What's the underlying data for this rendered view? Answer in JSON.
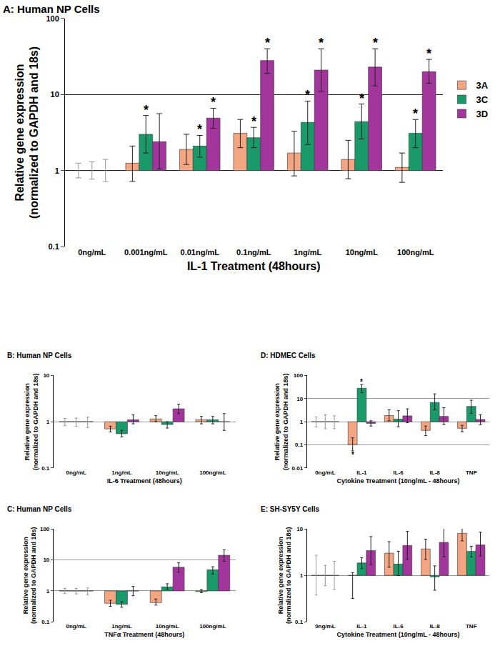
{
  "chart_data": [
    {
      "type": "bar",
      "title": "A: Human NP Cells",
      "x_label": "IL-1 Treatment (48hours)",
      "y_label": "Relative gene expression\n(normalized to GAPDH and 18s)",
      "categories": [
        "0ng/mL",
        "0.001ng/mL",
        "0.01ng/mL",
        "0.1ng/mL",
        "1ng/mL",
        "10ng/mL",
        "100ng/mL"
      ],
      "series": [
        {
          "name": "3A",
          "color": "#f4a582",
          "values": [
            1,
            1.25,
            1.9,
            3.1,
            1.7,
            1.4,
            1.1
          ],
          "errors_plus": [
            0.25,
            0.85,
            1.1,
            1.6,
            1.6,
            1.1,
            0.6
          ],
          "errors_minus": [
            0.2,
            0.53,
            0.7,
            1.1,
            0.85,
            0.62,
            0.4
          ]
        },
        {
          "name": "3C",
          "color": "#1a9a6a",
          "values": [
            1,
            3.0,
            2.1,
            2.7,
            4.3,
            4.4,
            3.1
          ],
          "errors_plus": [
            0.3,
            2.3,
            0.8,
            1.0,
            3.9,
            3.1,
            1.6
          ],
          "errors_minus": [
            0.23,
            1.3,
            0.6,
            0.7,
            2.1,
            1.8,
            1.1
          ]
        },
        {
          "name": "3D",
          "color": "#a3369c",
          "values": [
            1,
            2.4,
            4.9,
            28,
            21,
            23,
            20
          ],
          "errors_plus": [
            0.4,
            3.2,
            1.7,
            12,
            19,
            17,
            9
          ],
          "errors_minus": [
            0.28,
            1.35,
            1.3,
            9,
            10,
            10,
            6
          ]
        }
      ],
      "log": "y",
      "ylim": [
        0.1,
        100
      ],
      "yticks": [
        0.1,
        1,
        10,
        100
      ],
      "grid": true,
      "legend": "right",
      "annotations": [
        {
          "text": "*",
          "category": "0.001ng/mL",
          "series": "3C",
          "position": "above"
        },
        {
          "text": "*",
          "category": "0.01ng/mL",
          "series": "3C",
          "position": "above"
        },
        {
          "text": "*",
          "category": "0.1ng/mL",
          "series": "3C",
          "position": "above"
        },
        {
          "text": "*",
          "category": "1ng/mL",
          "series": "3C",
          "position": "above"
        },
        {
          "text": "*",
          "category": "10ng/mL",
          "series": "3C",
          "position": "above"
        },
        {
          "text": "*",
          "category": "100ng/mL",
          "series": "3C",
          "position": "above"
        },
        {
          "text": "*",
          "category": "0.01ng/mL",
          "series": "3D",
          "position": "above"
        },
        {
          "text": "*",
          "category": "0.1ng/mL",
          "series": "3D",
          "position": "above"
        },
        {
          "text": "*",
          "category": "1ng/mL",
          "series": "3D",
          "position": "above"
        },
        {
          "text": "*",
          "category": "10ng/mL",
          "series": "3D",
          "position": "above"
        },
        {
          "text": "*",
          "category": "100ng/mL",
          "series": "3D",
          "position": "above"
        }
      ]
    },
    {
      "type": "bar",
      "title": "B: Human NP Cells",
      "x_label": "IL-6 Treatment (48hours)",
      "y_label": "Relative gene expression\n(normalized to GAPDH and 18s)",
      "categories": [
        "0ng/mL",
        "1ng/mL",
        "10ng/mL",
        "100ng/mL"
      ],
      "series": [
        {
          "name": "3A",
          "color": "#f4a582",
          "values": [
            1,
            0.7,
            1.15,
            1.1
          ],
          "errors_plus": [
            0.18,
            0.1,
            0.2,
            0.2
          ],
          "errors_minus": [
            0.18,
            0.1,
            0.15,
            0.2
          ]
        },
        {
          "name": "3C",
          "color": "#1a9a6a",
          "values": [
            1,
            0.55,
            0.87,
            1.1
          ],
          "errors_plus": [
            0.2,
            0.1,
            0.13,
            0.2
          ],
          "errors_minus": [
            0.2,
            0.08,
            0.14,
            0.2
          ]
        },
        {
          "name": "3D",
          "color": "#a3369c",
          "values": [
            1,
            1.1,
            1.9,
            1.0
          ],
          "errors_plus": [
            0.25,
            0.3,
            0.5,
            0.5
          ],
          "errors_minus": [
            0.25,
            0.2,
            0.4,
            0.35
          ]
        }
      ],
      "log": "y",
      "ylim": [
        0.1,
        10
      ],
      "yticks": [
        0.1,
        1,
        10
      ],
      "grid": true
    },
    {
      "type": "bar",
      "title": "C: Human NP Cells",
      "x_label": "TNFα Treatment (48hours)",
      "y_label": "Relative gene expression\n(normalized to GAPDH and 18s)",
      "categories": [
        "0ng/mL",
        "1ng/mL",
        "10ng/mL",
        "100ng/mL"
      ],
      "series": [
        {
          "name": "3A",
          "color": "#f4a582",
          "values": [
            1,
            0.4,
            0.42,
            0.95
          ],
          "errors_plus": [
            0.2,
            0.1,
            0.13,
            0.15
          ],
          "errors_minus": [
            0.18,
            0.08,
            0.07,
            0.07
          ]
        },
        {
          "name": "3C",
          "color": "#1a9a6a",
          "values": [
            1,
            0.37,
            1.35,
            4.8
          ],
          "errors_plus": [
            0.2,
            0.08,
            0.35,
            1.2
          ],
          "errors_minus": [
            0.2,
            0.07,
            0.2,
            1.3
          ]
        },
        {
          "name": "3D",
          "color": "#a3369c",
          "values": [
            1,
            1.0,
            5.8,
            14
          ],
          "errors_plus": [
            0.25,
            0.4,
            2.2,
            7
          ],
          "errors_minus": [
            0.25,
            0.3,
            1.8,
            5
          ]
        }
      ],
      "log": "y",
      "ylim": [
        0.1,
        100
      ],
      "yticks": [
        0.1,
        1,
        10,
        100
      ],
      "grid": true
    },
    {
      "type": "bar",
      "title": "D: HDMEC Cells",
      "x_label": "Cytokine Treatment (10ng/mL - 48hours)",
      "y_label": "Relative gene expression\n(normalized to GAPDH and 18s)",
      "categories": [
        "0ng/mL",
        "IL-1",
        "IL-6",
        "IL-8",
        "TNF"
      ],
      "series": [
        {
          "name": "3A",
          "color": "#f4a582",
          "values": [
            1,
            0.1,
            1.85,
            0.42,
            0.52
          ],
          "errors_plus": [
            0.6,
            0.1,
            1.45,
            0.23,
            0.18
          ],
          "errors_minus": [
            0.4,
            0.045,
            0.75,
            0.17,
            0.15
          ]
        },
        {
          "name": "3C",
          "color": "#1a9a6a",
          "values": [
            1,
            28,
            1.3,
            6.8,
            4.6
          ],
          "errors_plus": [
            1.0,
            12,
            1.7,
            9.2,
            3.9
          ],
          "errors_minus": [
            0.5,
            10,
            0.7,
            3.5,
            2.3
          ]
        },
        {
          "name": "3D",
          "color": "#a3369c",
          "values": [
            1,
            0.85,
            1.8,
            1.7,
            1.25
          ],
          "errors_plus": [
            0.8,
            0.25,
            1.8,
            2.3,
            0.75
          ],
          "errors_minus": [
            0.5,
            0.2,
            0.9,
            0.95,
            0.5
          ]
        }
      ],
      "log": "y",
      "ylim": [
        0.01,
        100
      ],
      "yticks": [
        0.01,
        0.1,
        1,
        10,
        100
      ],
      "grid": true,
      "annotations": [
        {
          "text": "*",
          "category": "IL-1",
          "series": "3A",
          "position": "below"
        },
        {
          "text": "*",
          "category": "IL-1",
          "series": "3C",
          "position": "above"
        }
      ]
    },
    {
      "type": "bar",
      "title": "E: SH-SY5Y Cells",
      "x_label": "Cytokine Treatment (10ng/mL - 48hours)",
      "y_label": "Relative gene expression\n(normalized to GAPDH and 18s)",
      "categories": [
        "0ng/mL",
        "IL-1",
        "IL-6",
        "IL-8",
        "TNF"
      ],
      "series": [
        {
          "name": "3A",
          "color": "#f4a582",
          "values": [
            1,
            1.0,
            3.0,
            3.7,
            8.0
          ],
          "errors_plus": [
            1.7,
            0.15,
            2.3,
            2.3,
            2.5
          ],
          "errors_minus": [
            0.62,
            0.68,
            1.5,
            1.5,
            2.5
          ]
        },
        {
          "name": "3C",
          "color": "#1a9a6a",
          "values": [
            1,
            1.85,
            1.75,
            0.93,
            3.3
          ],
          "errors_plus": [
            0.65,
            0.55,
            1.55,
            0.67,
            0.9
          ],
          "errors_minus": [
            0.4,
            0.45,
            0.75,
            0.45,
            0.8
          ]
        },
        {
          "name": "3D",
          "color": "#a3369c",
          "values": [
            1,
            3.4,
            4.4,
            5.1,
            4.5
          ],
          "errors_plus": [
            1.0,
            3.4,
            4.4,
            5.9,
            4.0
          ],
          "errors_minus": [
            0.5,
            1.7,
            2.2,
            2.6,
            1.9
          ]
        }
      ],
      "log": "y",
      "ylim": [
        0.1,
        10
      ],
      "yticks": [
        0.1,
        1,
        10
      ],
      "grid": true
    }
  ]
}
